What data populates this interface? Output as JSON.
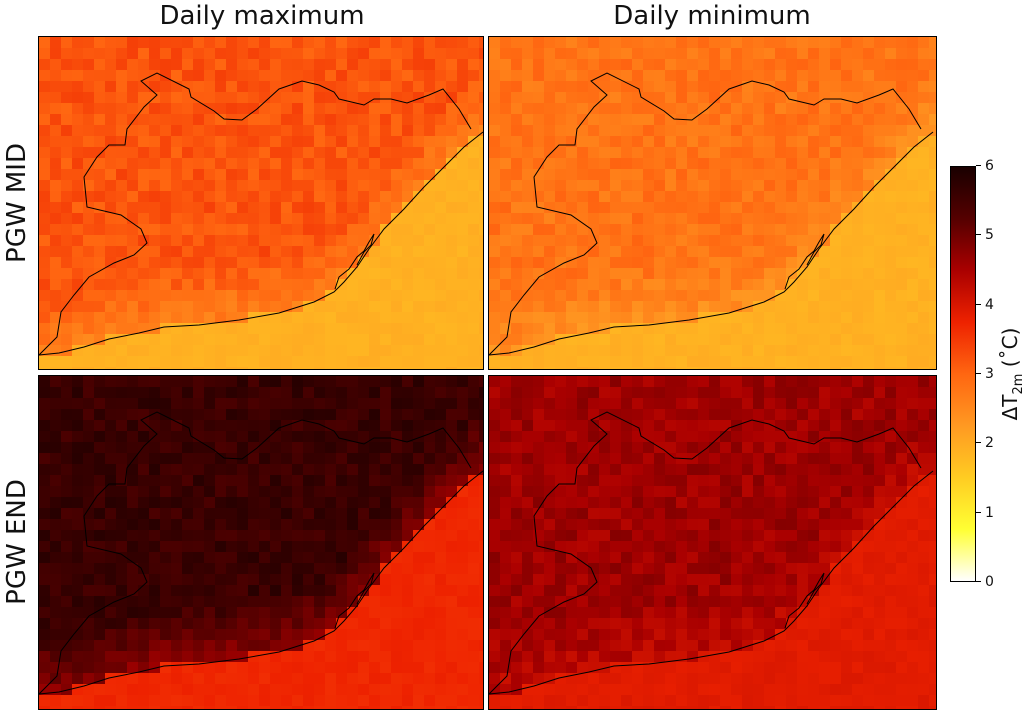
{
  "columns": [
    "Daily maximum",
    "Daily minimum"
  ],
  "rows": [
    "PGW MID",
    "PGW END"
  ],
  "colorbar": {
    "label_prefix": "ΔT",
    "label_sub": "2m",
    "label_suffix": " (˚C)",
    "min": 0,
    "max": 6,
    "ticks": [
      "6",
      "5",
      "4",
      "3",
      "2",
      "1",
      "0"
    ],
    "colors": [
      "#ffffff",
      "#ffff33",
      "#ffcc22",
      "#ff9922",
      "#ff6611",
      "#ee2200",
      "#aa0000",
      "#550000",
      "#1a0000"
    ]
  },
  "map_data": {
    "variable": "Change in 2 m temperature (°C)",
    "panels": [
      {
        "row": "PGW MID",
        "column": "Daily maximum",
        "land_value": 3.2,
        "sea_value": 1.9
      },
      {
        "row": "PGW MID",
        "column": "Daily minimum",
        "land_value": 2.8,
        "sea_value": 1.9
      },
      {
        "row": "PGW END",
        "column": "Daily maximum",
        "land_value": 5.6,
        "sea_value": 3.7
      },
      {
        "row": "PGW END",
        "column": "Daily minimum",
        "land_value": 4.6,
        "sea_value": 3.9
      }
    ]
  }
}
